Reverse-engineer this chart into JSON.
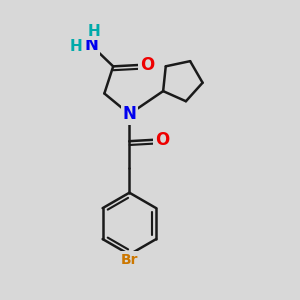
{
  "background_color": "#d8d8d8",
  "figsize": [
    3.0,
    3.0
  ],
  "dpi": 100,
  "bond_color": "#1a1a1a",
  "bond_width": 1.8,
  "atoms": {
    "N": {
      "color": "#0000ee",
      "fontsize": 12
    },
    "O": {
      "color": "#ee0000",
      "fontsize": 12
    },
    "Br": {
      "color": "#cc7700",
      "fontsize": 10
    },
    "H": {
      "color": "#00aaaa",
      "fontsize": 11
    }
  }
}
